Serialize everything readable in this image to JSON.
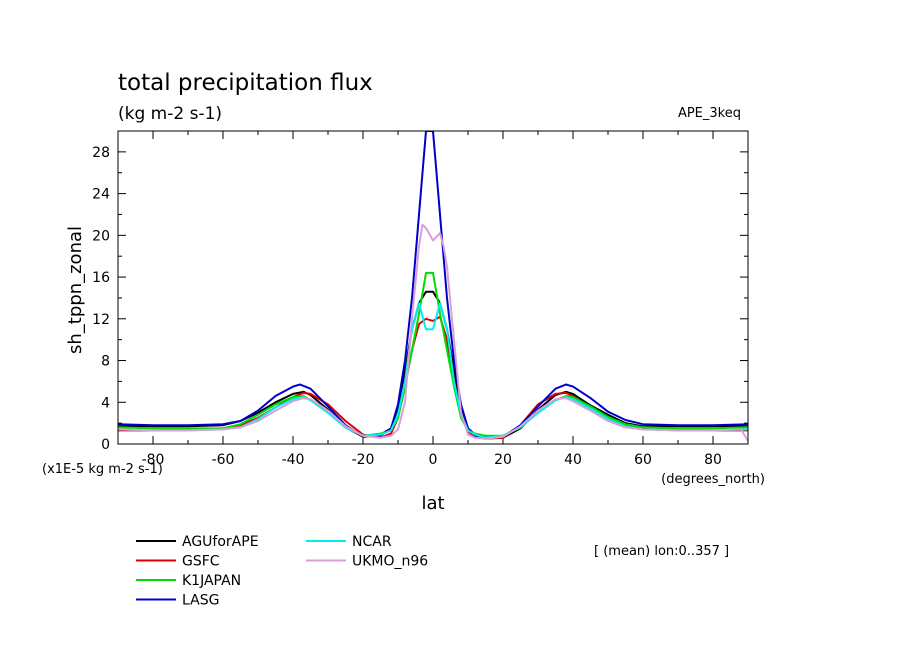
{
  "chart_data": {
    "type": "line",
    "title": "total precipitation flux",
    "subtitle": "(kg m-2 s-1)",
    "dataset_label": "APE_3keq",
    "ylabel": "sh_tppn_zonal",
    "xlabel": "lat",
    "x_units": "(degrees_north)",
    "y_units": "(x1E-5 kg m-2 s-1)",
    "note": "[ (mean) lon:0..357 ]",
    "xlim": [
      -90,
      90
    ],
    "ylim": [
      0,
      30
    ],
    "x_ticks": [
      -80,
      -60,
      -40,
      -20,
      0,
      20,
      40,
      60,
      80
    ],
    "y_ticks": [
      0,
      4,
      8,
      12,
      16,
      20,
      24,
      28
    ],
    "grid": false,
    "legend_position": "bottom-left",
    "series": [
      {
        "name": "AGUforAPE",
        "color": "#000000",
        "x": [
          -90,
          -80,
          -70,
          -60,
          -55,
          -50,
          -45,
          -40,
          -37,
          -35,
          -30,
          -25,
          -20,
          -15,
          -12,
          -10,
          -8,
          -6,
          -4,
          -2,
          0,
          2,
          4,
          6,
          8,
          10,
          12,
          15,
          20,
          25,
          30,
          35,
          38,
          40,
          45,
          50,
          55,
          60,
          70,
          80,
          90
        ],
        "y": [
          1.7,
          1.7,
          1.7,
          1.8,
          2.2,
          3.0,
          4.0,
          4.8,
          5.0,
          4.7,
          3.3,
          1.6,
          0.7,
          0.9,
          1.5,
          3.5,
          7.0,
          11.0,
          13.5,
          14.6,
          14.6,
          13.5,
          11.0,
          7.0,
          3.5,
          1.5,
          0.9,
          0.6,
          0.6,
          1.5,
          3.3,
          4.7,
          5.0,
          4.8,
          3.7,
          2.8,
          2.0,
          1.7,
          1.7,
          1.7,
          1.7
        ]
      },
      {
        "name": "GSFC",
        "color": "#e00000",
        "x": [
          -90,
          -80,
          -70,
          -60,
          -55,
          -50,
          -45,
          -40,
          -37,
          -35,
          -30,
          -25,
          -20,
          -15,
          -12,
          -10,
          -8,
          -6,
          -4,
          -2,
          0,
          2,
          4,
          6,
          8,
          10,
          12,
          15,
          20,
          25,
          30,
          35,
          38,
          40,
          45,
          50,
          55,
          60,
          70,
          80,
          90
        ],
        "y": [
          1.3,
          1.3,
          1.4,
          1.5,
          1.8,
          2.5,
          3.5,
          4.5,
          4.9,
          4.8,
          3.8,
          2.2,
          0.9,
          0.6,
          1.0,
          2.5,
          5.5,
          9.0,
          11.5,
          12.0,
          11.8,
          12.2,
          10.0,
          6.0,
          2.8,
          1.2,
          0.7,
          0.5,
          0.6,
          1.8,
          3.8,
          4.8,
          4.9,
          4.6,
          3.4,
          2.4,
          1.8,
          1.5,
          1.4,
          1.3,
          1.3
        ]
      },
      {
        "name": "K1JAPAN",
        "color": "#00dd00",
        "x": [
          -90,
          -80,
          -70,
          -60,
          -55,
          -50,
          -45,
          -40,
          -37,
          -35,
          -30,
          -25,
          -20,
          -15,
          -12,
          -10,
          -8,
          -6,
          -4,
          -2,
          0,
          2,
          4,
          6,
          8,
          10,
          12,
          15,
          20,
          25,
          30,
          35,
          38,
          40,
          45,
          50,
          55,
          60,
          70,
          80,
          90
        ],
        "y": [
          1.6,
          1.5,
          1.5,
          1.5,
          1.9,
          2.8,
          3.8,
          4.5,
          4.6,
          4.2,
          3.0,
          1.6,
          0.8,
          1.0,
          1.3,
          2.5,
          5.5,
          9.0,
          12.5,
          16.4,
          16.4,
          12.5,
          9.0,
          5.5,
          2.5,
          1.3,
          1.0,
          0.8,
          0.8,
          1.6,
          3.0,
          4.2,
          4.6,
          4.5,
          3.6,
          2.6,
          1.9,
          1.6,
          1.5,
          1.5,
          1.6
        ]
      },
      {
        "name": "LASG",
        "color": "#0000cc",
        "x": [
          -90,
          -80,
          -70,
          -60,
          -55,
          -50,
          -45,
          -40,
          -38,
          -35,
          -30,
          -25,
          -20,
          -15,
          -12,
          -10,
          -8,
          -6,
          -4,
          -2,
          0,
          2,
          4,
          6,
          8,
          10,
          12,
          15,
          20,
          25,
          30,
          35,
          38,
          40,
          45,
          50,
          55,
          60,
          70,
          80,
          90
        ],
        "y": [
          1.9,
          1.8,
          1.8,
          1.9,
          2.2,
          3.2,
          4.6,
          5.5,
          5.7,
          5.3,
          3.6,
          1.8,
          0.7,
          0.8,
          1.5,
          3.8,
          8.0,
          14.0,
          22.0,
          30.0,
          30.0,
          22.0,
          14.0,
          8.0,
          3.8,
          1.5,
          0.8,
          0.6,
          0.7,
          1.8,
          3.6,
          5.3,
          5.7,
          5.5,
          4.4,
          3.1,
          2.3,
          1.9,
          1.8,
          1.8,
          1.9
        ]
      },
      {
        "name": "NCAR",
        "color": "#00eeee",
        "x": [
          -90,
          -80,
          -70,
          -60,
          -55,
          -50,
          -45,
          -40,
          -37,
          -35,
          -30,
          -25,
          -20,
          -15,
          -12,
          -10,
          -8,
          -6,
          -4,
          -2,
          0,
          2,
          4,
          6,
          8,
          10,
          12,
          15,
          20,
          25,
          30,
          35,
          38,
          40,
          45,
          50,
          55,
          60,
          70,
          80,
          90
        ],
        "y": [
          1.4,
          1.3,
          1.3,
          1.4,
          1.6,
          2.4,
          3.5,
          4.3,
          4.5,
          4.2,
          3.0,
          1.6,
          0.8,
          0.9,
          1.3,
          2.8,
          6.0,
          11.0,
          13.5,
          11.0,
          11.0,
          13.5,
          11.0,
          6.0,
          2.8,
          1.3,
          0.9,
          0.6,
          0.8,
          1.6,
          3.0,
          4.2,
          4.5,
          4.3,
          3.4,
          2.4,
          1.7,
          1.4,
          1.3,
          1.3,
          1.4
        ]
      },
      {
        "name": "UKMO_n96",
        "color": "#d8a0d8",
        "x": [
          -90,
          -80,
          -70,
          -60,
          -55,
          -50,
          -45,
          -40,
          -37,
          -35,
          -30,
          -25,
          -20,
          -15,
          -12,
          -10,
          -8,
          -6,
          -4,
          -3,
          -2,
          0,
          2,
          3,
          4,
          6,
          8,
          10,
          12,
          15,
          20,
          25,
          30,
          35,
          38,
          40,
          45,
          50,
          55,
          60,
          70,
          80,
          88,
          90
        ],
        "y": [
          1.4,
          1.3,
          1.3,
          1.4,
          1.6,
          2.2,
          3.2,
          4.1,
          4.4,
          4.3,
          3.2,
          1.7,
          0.8,
          0.6,
          0.8,
          1.4,
          4.0,
          12.0,
          19.0,
          21.0,
          20.7,
          19.5,
          20.2,
          19.0,
          17.0,
          10.0,
          3.0,
          0.9,
          0.6,
          0.5,
          0.7,
          1.7,
          3.2,
          4.3,
          4.4,
          4.1,
          3.2,
          2.2,
          1.6,
          1.4,
          1.3,
          1.3,
          1.4,
          0.3
        ]
      }
    ]
  }
}
